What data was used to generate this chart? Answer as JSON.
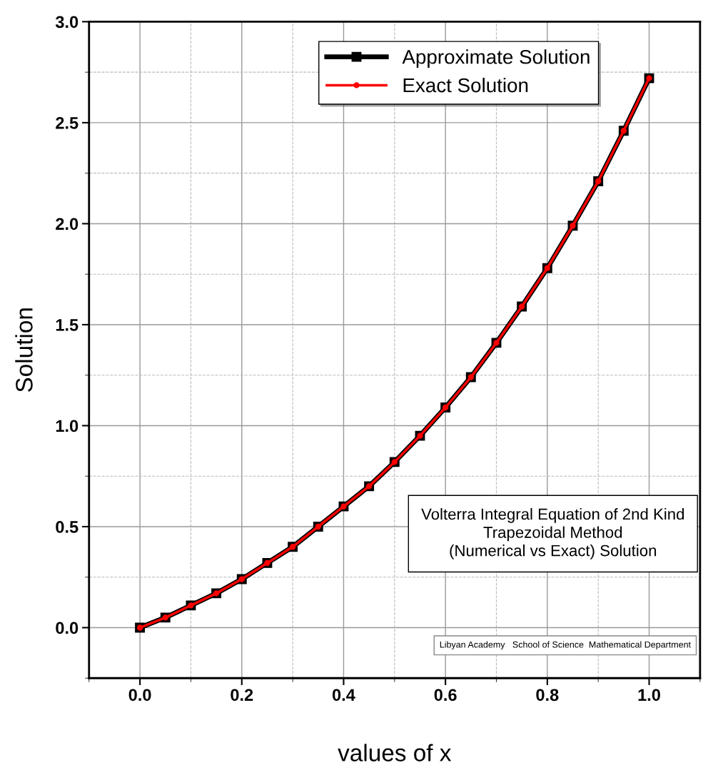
{
  "chart_data": {
    "type": "line",
    "xlabel": "values of x",
    "ylabel": "Solution",
    "x": [
      0,
      0.05,
      0.1,
      0.15,
      0.2,
      0.25,
      0.3,
      0.35,
      0.4,
      0.45,
      0.5,
      0.55,
      0.6,
      0.65,
      0.7,
      0.75,
      0.8,
      0.85,
      0.9,
      0.95,
      1.0
    ],
    "series": [
      {
        "name": "Approximate Solution",
        "color": "#000000",
        "marker": "square",
        "values": [
          0,
          0.05,
          0.11,
          0.17,
          0.24,
          0.32,
          0.4,
          0.5,
          0.6,
          0.7,
          0.82,
          0.95,
          1.09,
          1.24,
          1.41,
          1.59,
          1.78,
          1.99,
          2.21,
          2.46,
          2.72
        ]
      },
      {
        "name": "Exact Solution",
        "color": "#ff0000",
        "marker": "circle",
        "values": [
          0,
          0.05,
          0.11,
          0.17,
          0.24,
          0.32,
          0.4,
          0.5,
          0.6,
          0.7,
          0.82,
          0.95,
          1.09,
          1.24,
          1.41,
          1.59,
          1.78,
          1.99,
          2.21,
          2.46,
          2.72
        ]
      }
    ],
    "xlim": [
      -0.1,
      1.1
    ],
    "xticks": [
      {
        "value": 0,
        "label": "0.0"
      },
      0.2,
      0.4,
      0.6,
      0.8,
      {
        "value": 1,
        "label": "1.0"
      }
    ],
    "ylim": [
      -0.25,
      3.0
    ],
    "yticks": [
      {
        "value": 0,
        "label": "0.0"
      },
      0.5,
      {
        "value": 1,
        "label": "1.0"
      },
      1.5,
      {
        "value": 2,
        "label": "2.0"
      },
      2.5,
      {
        "value": 3,
        "label": "3.0"
      }
    ],
    "grid": true,
    "legend": "top right",
    "line_style": "solid",
    "annotations": [
      "Volterra Integral Equation of 2nd Kind\nTrapezoidal Method\n(Numerical vs Exact) Solution",
      "Libyan Academy   School of Science  Mathematical Department"
    ]
  }
}
